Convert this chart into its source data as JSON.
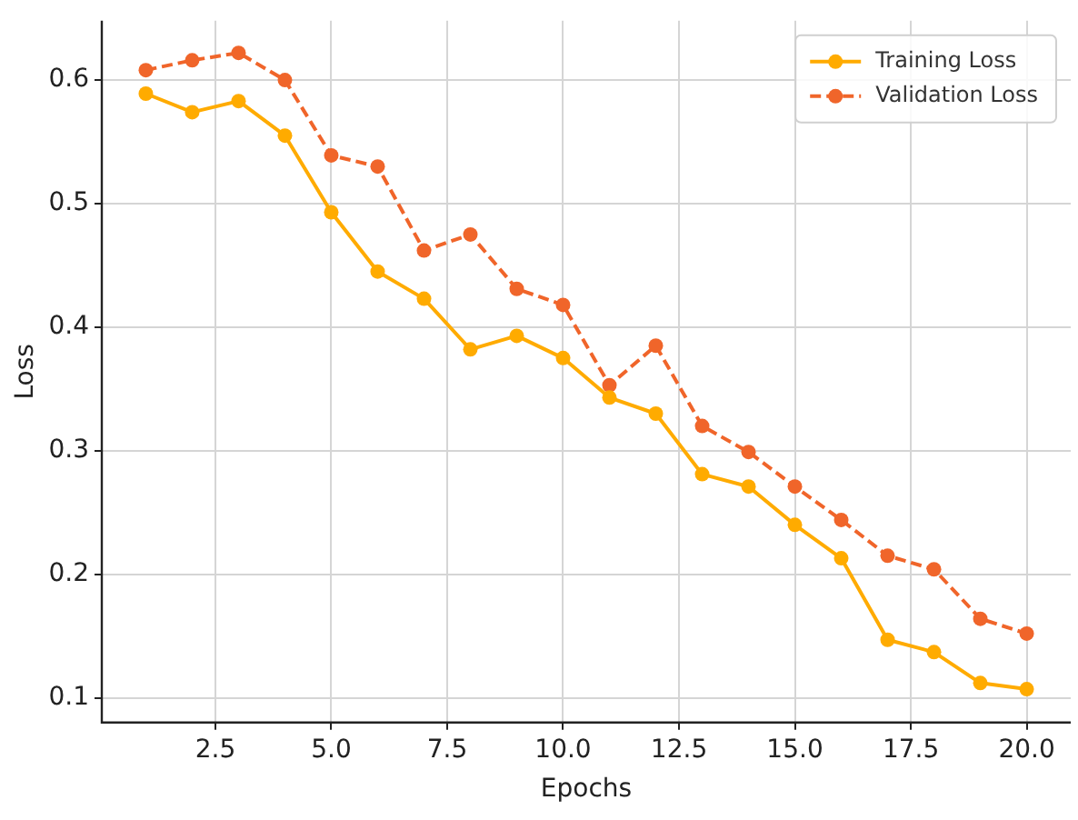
{
  "chart_data": {
    "type": "line",
    "xlabel": "Epochs",
    "ylabel": "Loss",
    "x": [
      1,
      2,
      3,
      4,
      5,
      6,
      7,
      8,
      9,
      10,
      11,
      12,
      13,
      14,
      15,
      16,
      17,
      18,
      19,
      20
    ],
    "series": [
      {
        "name": "Training Loss",
        "color": "#ffab00",
        "line_style": "solid",
        "values": [
          0.589,
          0.574,
          0.583,
          0.555,
          0.493,
          0.445,
          0.423,
          0.382,
          0.393,
          0.375,
          0.343,
          0.33,
          0.281,
          0.271,
          0.24,
          0.213,
          0.147,
          0.137,
          0.112,
          0.107
        ]
      },
      {
        "name": "Validation Loss",
        "color": "#f0652a",
        "line_style": "dashed",
        "values": [
          0.608,
          0.616,
          0.622,
          0.6,
          0.539,
          0.53,
          0.462,
          0.475,
          0.431,
          0.418,
          0.353,
          0.385,
          0.32,
          0.299,
          0.271,
          0.244,
          0.215,
          0.204,
          0.164,
          0.152
        ]
      }
    ],
    "xlim": [
      0.05,
      20.95
    ],
    "ylim": [
      0.08,
      0.648
    ],
    "xticks": [
      2.5,
      {
        "value": 5,
        "label": "5.0"
      },
      7.5,
      {
        "value": 10,
        "label": "10.0"
      },
      12.5,
      {
        "value": 15,
        "label": "15.0"
      },
      17.5,
      {
        "value": 20,
        "label": "20.0"
      }
    ],
    "yticks": [
      0.1,
      0.2,
      0.3,
      0.4,
      0.5,
      0.6
    ],
    "grid": true,
    "legend": "top right",
    "marker": "circle"
  }
}
